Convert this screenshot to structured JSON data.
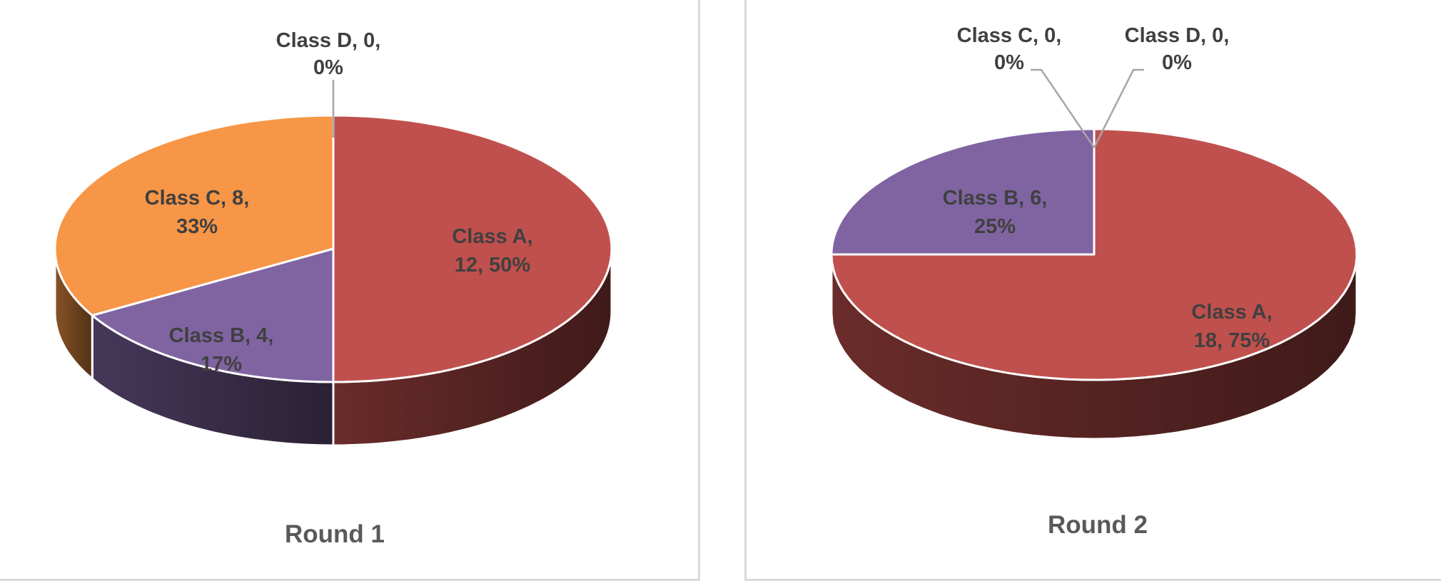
{
  "chart_data": [
    {
      "type": "pie",
      "title": "Round 1",
      "categories": [
        "Class A",
        "Class B",
        "Class C",
        "Class D"
      ],
      "values": [
        12,
        4,
        8,
        0
      ],
      "percent_labels": [
        "50%",
        "17%",
        "33%",
        "0%"
      ],
      "colors": [
        "#c0504d",
        "#8064a2",
        "#f79646",
        "#4bacc6"
      ],
      "legend": "none",
      "data_labels": "category, value, percent"
    },
    {
      "type": "pie",
      "title": "Round 2",
      "categories": [
        "Class A",
        "Class B",
        "Class C",
        "Class D"
      ],
      "values": [
        18,
        6,
        0,
        0
      ],
      "percent_labels": [
        "75%",
        "25%",
        "0%",
        "0%"
      ],
      "colors": [
        "#c0504d",
        "#8064a2",
        "#f79646",
        "#4bacc6"
      ],
      "legend": "none",
      "data_labels": "category, value, percent"
    }
  ]
}
